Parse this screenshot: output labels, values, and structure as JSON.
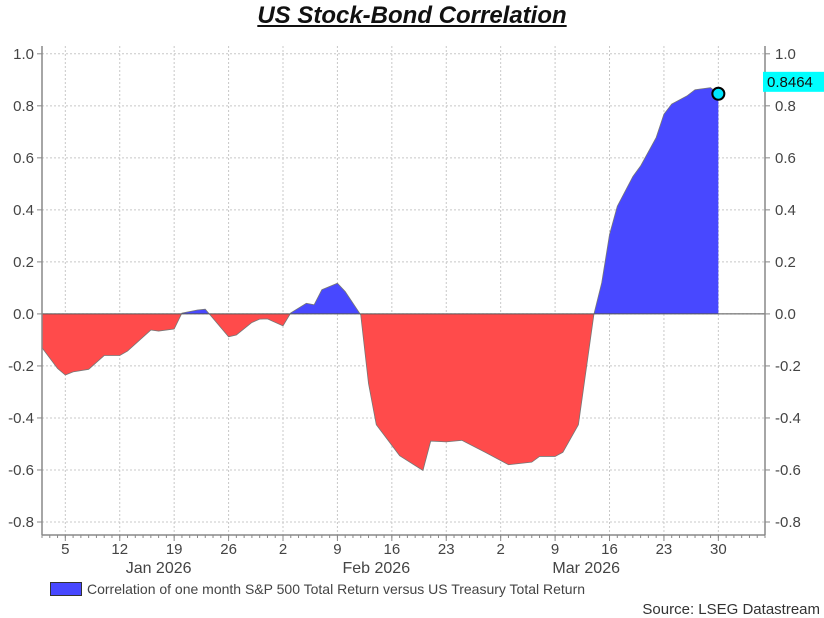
{
  "chart_data": {
    "type": "area",
    "title": "US Stock-Bond Correlation",
    "xlabel": "",
    "ylabel": "",
    "ylim": [
      -0.85,
      1.03
    ],
    "xlim": [
      "2026-01-02",
      "2026-04-05"
    ],
    "y_ticks": [
      "1.0",
      "0.8",
      "0.6",
      "0.4",
      "0.2",
      "0.0",
      "-0.2",
      "-0.4",
      "-0.6",
      "-0.8"
    ],
    "x_ticks": [
      {
        "date": "2026-01-05",
        "label": "5"
      },
      {
        "date": "2026-01-12",
        "label": "12"
      },
      {
        "date": "2026-01-19",
        "label": "19"
      },
      {
        "date": "2026-01-26",
        "label": "26"
      },
      {
        "date": "2026-02-02",
        "label": "2"
      },
      {
        "date": "2026-02-09",
        "label": "9"
      },
      {
        "date": "2026-02-16",
        "label": "16"
      },
      {
        "date": "2026-02-23",
        "label": "23"
      },
      {
        "date": "2026-03-02",
        "label": "2"
      },
      {
        "date": "2026-03-09",
        "label": "9"
      },
      {
        "date": "2026-03-16",
        "label": "16"
      },
      {
        "date": "2026-03-23",
        "label": "23"
      },
      {
        "date": "2026-03-30",
        "label": "30"
      }
    ],
    "months": [
      {
        "date": "2026-01-17",
        "label": "Jan 2026"
      },
      {
        "date": "2026-02-14",
        "label": "Feb 2026"
      },
      {
        "date": "2026-03-13",
        "label": "Mar 2026"
      }
    ],
    "grid": true,
    "legend_position": "bottom-left",
    "colors": {
      "positive": "#4848ff",
      "negative": "#ff4b4b",
      "marker": "#00e5ff",
      "label_bg": "#00ffff"
    },
    "series": [
      {
        "name": "Correlation of one month S&P 500 Total Return versus US Treasury Total Return",
        "x": [
          "2026-01-02",
          "2026-01-04",
          "2026-01-05",
          "2026-01-06",
          "2026-01-08",
          "2026-01-10",
          "2026-01-12",
          "2026-01-13",
          "2026-01-16",
          "2026-01-17",
          "2026-01-19",
          "2026-01-20",
          "2026-01-22",
          "2026-01-23",
          "2026-01-24",
          "2026-01-26",
          "2026-01-27",
          "2026-01-29",
          "2026-01-30",
          "2026-01-31",
          "2026-02-02",
          "2026-02-03",
          "2026-02-05",
          "2026-02-06",
          "2026-02-07",
          "2026-02-09",
          "2026-02-10",
          "2026-02-12",
          "2026-02-13",
          "2026-02-14",
          "2026-02-17",
          "2026-02-20",
          "2026-02-21",
          "2026-02-23",
          "2026-02-25",
          "2026-02-28",
          "2026-03-03",
          "2026-03-06",
          "2026-03-07",
          "2026-03-09",
          "2026-03-10",
          "2026-03-12",
          "2026-03-14",
          "2026-03-15",
          "2026-03-16",
          "2026-03-17",
          "2026-03-19",
          "2026-03-20",
          "2026-03-22",
          "2026-03-23",
          "2026-03-24",
          "2026-03-26",
          "2026-03-27",
          "2026-03-29",
          "2026-03-30"
        ],
        "values": [
          -0.13,
          -0.21,
          -0.235,
          -0.223,
          -0.213,
          -0.16,
          -0.16,
          -0.143,
          -0.062,
          -0.066,
          -0.058,
          0.003,
          0.015,
          0.018,
          -0.017,
          -0.088,
          -0.081,
          -0.033,
          -0.02,
          -0.019,
          -0.046,
          0.004,
          0.041,
          0.035,
          0.093,
          0.118,
          0.086,
          -0.004,
          -0.268,
          -0.426,
          -0.545,
          -0.602,
          -0.489,
          -0.492,
          -0.486,
          -0.532,
          -0.58,
          -0.57,
          -0.548,
          -0.548,
          -0.532,
          -0.426,
          0.0,
          0.12,
          0.305,
          0.414,
          0.528,
          0.569,
          0.678,
          0.768,
          0.807,
          0.839,
          0.862,
          0.87,
          0.8464
        ]
      }
    ],
    "last_value_label": "0.8464"
  },
  "source": "Source: LSEG Datastream"
}
